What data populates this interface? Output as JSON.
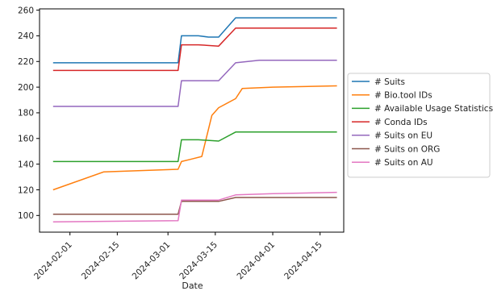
{
  "chart_data": {
    "type": "line",
    "title": "",
    "xlabel": "Date",
    "ylabel": "",
    "x_type": "date",
    "xlim": [
      "2024-01-23",
      "2024-04-22"
    ],
    "ylim": [
      87,
      261
    ],
    "grid": false,
    "legend_position": "right",
    "x_tick_labels": [
      "2024-02-01",
      "2024-02-15",
      "2024-03-01",
      "2024-03-15",
      "2024-04-01",
      "2024-04-15"
    ],
    "y_tick_labels": [
      "100",
      "120",
      "140",
      "160",
      "180",
      "200",
      "220",
      "240",
      "260"
    ],
    "y_ticks": [
      100,
      120,
      140,
      160,
      180,
      200,
      220,
      240,
      260
    ],
    "series": [
      {
        "name": "# Suits",
        "color": "#1f77b4",
        "points": [
          [
            "2024-01-27",
            219
          ],
          [
            "2024-03-04",
            219
          ],
          [
            "2024-03-05",
            240
          ],
          [
            "2024-03-10",
            240
          ],
          [
            "2024-03-13",
            239
          ],
          [
            "2024-03-16",
            239
          ],
          [
            "2024-03-21",
            254
          ],
          [
            "2024-04-20",
            254
          ]
        ]
      },
      {
        "name": "# Bio.tool IDs",
        "color": "#ff7f0e",
        "points": [
          [
            "2024-01-27",
            120
          ],
          [
            "2024-02-11",
            134
          ],
          [
            "2024-03-04",
            136
          ],
          [
            "2024-03-05",
            142
          ],
          [
            "2024-03-08",
            144
          ],
          [
            "2024-03-11",
            146
          ],
          [
            "2024-03-14",
            178
          ],
          [
            "2024-03-16",
            184
          ],
          [
            "2024-03-21",
            191
          ],
          [
            "2024-03-23",
            199
          ],
          [
            "2024-04-01",
            200
          ],
          [
            "2024-04-20",
            201
          ]
        ]
      },
      {
        "name": "# Available Usage Statistics",
        "color": "#2ca02c",
        "points": [
          [
            "2024-01-27",
            142
          ],
          [
            "2024-03-04",
            142
          ],
          [
            "2024-03-05",
            159
          ],
          [
            "2024-03-10",
            159
          ],
          [
            "2024-03-16",
            158
          ],
          [
            "2024-03-21",
            165
          ],
          [
            "2024-04-20",
            165
          ]
        ]
      },
      {
        "name": "# Conda IDs",
        "color": "#d62728",
        "points": [
          [
            "2024-01-27",
            213
          ],
          [
            "2024-03-04",
            213
          ],
          [
            "2024-03-05",
            233
          ],
          [
            "2024-03-10",
            233
          ],
          [
            "2024-03-16",
            232
          ],
          [
            "2024-03-21",
            246
          ],
          [
            "2024-04-20",
            246
          ]
        ]
      },
      {
        "name": "# Suits on EU",
        "color": "#9467bd",
        "points": [
          [
            "2024-01-27",
            185
          ],
          [
            "2024-03-04",
            185
          ],
          [
            "2024-03-05",
            205
          ],
          [
            "2024-03-10",
            205
          ],
          [
            "2024-03-16",
            205
          ],
          [
            "2024-03-21",
            219
          ],
          [
            "2024-03-28",
            221
          ],
          [
            "2024-04-20",
            221
          ]
        ]
      },
      {
        "name": "# Suits on ORG",
        "color": "#8c564b",
        "points": [
          [
            "2024-01-27",
            101
          ],
          [
            "2024-03-04",
            101
          ],
          [
            "2024-03-05",
            111
          ],
          [
            "2024-03-10",
            111
          ],
          [
            "2024-03-16",
            111
          ],
          [
            "2024-03-21",
            114
          ],
          [
            "2024-04-20",
            114
          ]
        ]
      },
      {
        "name": "# Suits on AU",
        "color": "#e377c2",
        "points": [
          [
            "2024-01-27",
            95
          ],
          [
            "2024-03-04",
            96
          ],
          [
            "2024-03-05",
            112
          ],
          [
            "2024-03-10",
            112
          ],
          [
            "2024-03-16",
            112
          ],
          [
            "2024-03-21",
            116
          ],
          [
            "2024-04-01",
            117
          ],
          [
            "2024-04-20",
            118
          ]
        ]
      }
    ]
  }
}
